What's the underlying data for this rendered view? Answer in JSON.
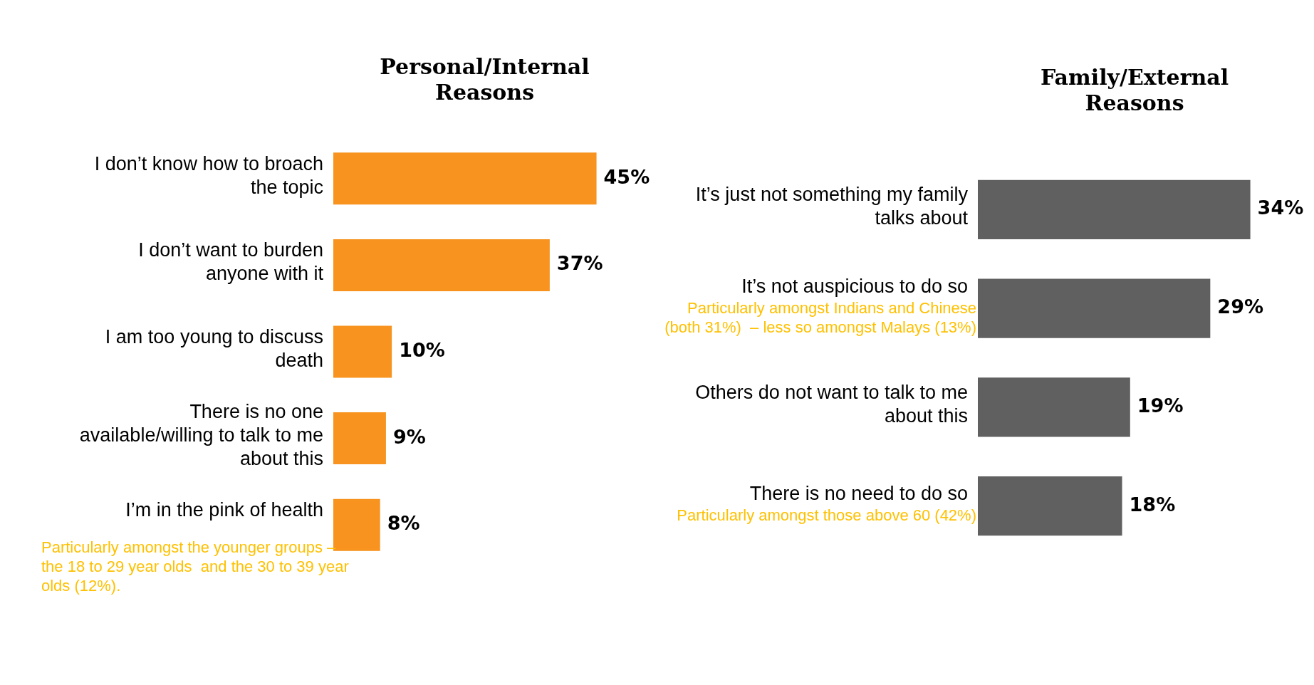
{
  "chart_data": [
    {
      "type": "bar",
      "orientation": "horizontal",
      "title": "Personal/Internal Reasons",
      "categories": [
        "I don’t know how to broach the topic",
        "I don’t want to burden anyone with it",
        "I am too young to discuss death",
        "There is no one available/willing to talk to me about this",
        "I’m in the pink of health"
      ],
      "values": [
        45,
        37,
        10,
        9,
        8
      ],
      "value_labels": [
        "45%",
        "37%",
        "10%",
        "9%",
        "8%"
      ],
      "color": "#f7931e",
      "annotations": [
        "Particularly amongst the younger groups –  the 18 to 29 year olds  and the 30 to 39 year olds (12%)."
      ]
    },
    {
      "type": "bar",
      "orientation": "horizontal",
      "title": "Family/External Reasons",
      "categories": [
        "It’s just not something my family talks about",
        "It’s not auspicious to do so",
        "Others do not want to talk to me about this",
        "There is no need to do so"
      ],
      "values": [
        34,
        29,
        19,
        18
      ],
      "value_labels": [
        "34%",
        "29%",
        "19%",
        "18%"
      ],
      "color": "#606060",
      "annotations": [
        "Particularly amongst Indians and Chinese (both 31%)  – less so amongst Malays (13%)",
        "Particularly amongst those above 60 (42%)"
      ]
    }
  ]
}
